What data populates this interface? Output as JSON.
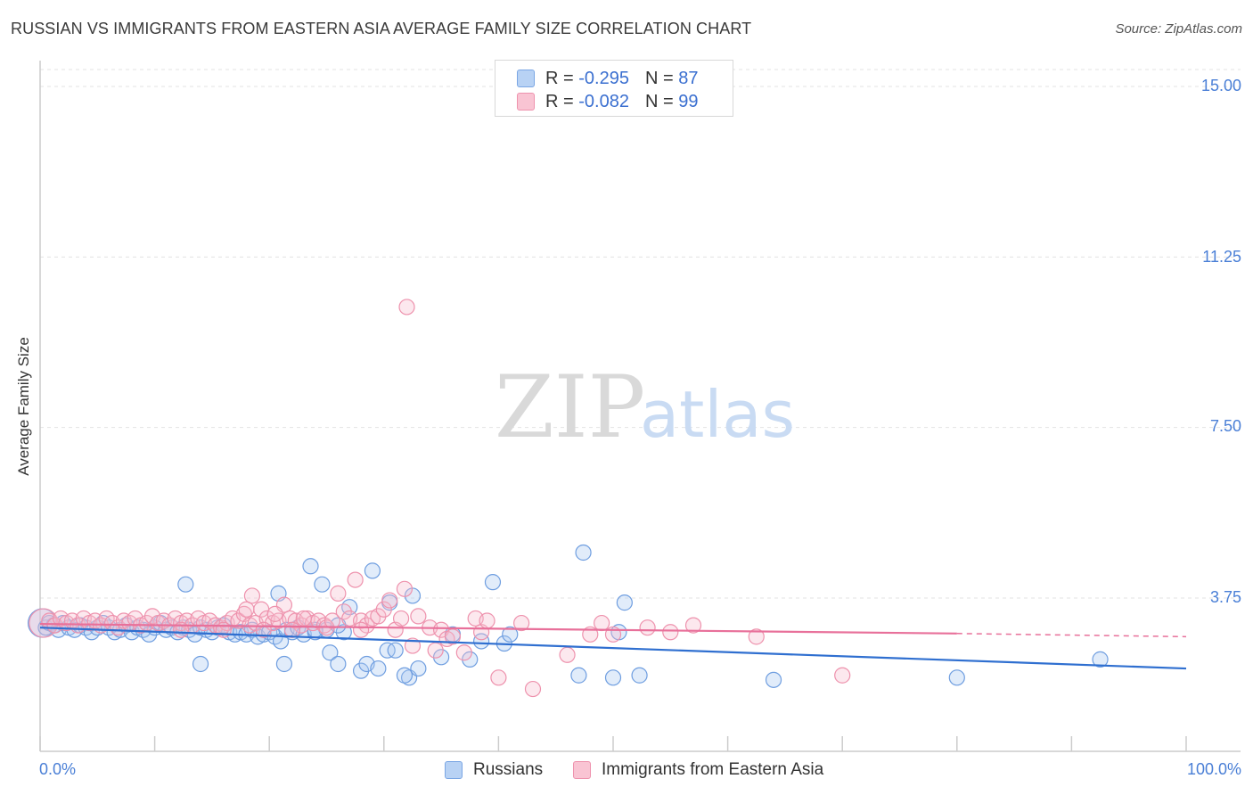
{
  "title": "RUSSIAN VS IMMIGRANTS FROM EASTERN ASIA AVERAGE FAMILY SIZE CORRELATION CHART",
  "source": "Source: ZipAtlas.com",
  "legend": {
    "rows": [
      {
        "r_label": "R =",
        "r_value": "-0.295",
        "n_label": "N =",
        "n_value": "87"
      },
      {
        "r_label": "R =",
        "r_value": "-0.082",
        "n_label": "N =",
        "n_value": "99"
      }
    ]
  },
  "bottom_legend": {
    "series1": "Russians",
    "series2": "Immigrants from Eastern Asia"
  },
  "colors": {
    "blue": "#6f9ee0",
    "blue_line": "#2f6fd0",
    "pink": "#ee92ad",
    "pink_line": "#e8709a",
    "axis_text": "#4a7fd6"
  },
  "chart_data": {
    "type": "scatter",
    "ylabel": "Average Family Size",
    "xlabel": "",
    "x_tick_labels": [
      "0.0%",
      "100.0%"
    ],
    "y_tick_labels": [
      "15.00",
      "11.25",
      "7.50",
      "3.75"
    ],
    "y_ticks": [
      15.0,
      11.25,
      7.5,
      3.75
    ],
    "xlim": [
      0,
      100
    ],
    "ylim": [
      0.5,
      15.5
    ],
    "grid": true,
    "watermark": {
      "part1": "ZIP",
      "part2": "atlas"
    },
    "series": [
      {
        "name": "Russians",
        "trend": {
          "x0": 0,
          "y0": 3.1,
          "x1": 100,
          "y1": 2.2
        },
        "points": [
          [
            0.2,
            3.2
          ],
          [
            0.5,
            3.1
          ],
          [
            0.8,
            3.2
          ],
          [
            1.2,
            3.15
          ],
          [
            1.6,
            3.05
          ],
          [
            2.0,
            3.2
          ],
          [
            2.5,
            3.1
          ],
          [
            3.0,
            3.05
          ],
          [
            3.5,
            3.15
          ],
          [
            4.0,
            3.1
          ],
          [
            4.5,
            3.0
          ],
          [
            5.0,
            3.1
          ],
          [
            5.5,
            3.2
          ],
          [
            6.0,
            3.1
          ],
          [
            6.5,
            3.0
          ],
          [
            7.0,
            3.05
          ],
          [
            7.5,
            3.15
          ],
          [
            8.0,
            3.0
          ],
          [
            8.5,
            3.1
          ],
          [
            9.0,
            3.05
          ],
          [
            9.5,
            2.95
          ],
          [
            10.0,
            3.1
          ],
          [
            10.5,
            3.2
          ],
          [
            11.0,
            3.05
          ],
          [
            11.5,
            3.1
          ],
          [
            12.0,
            3.0
          ],
          [
            12.5,
            3.1
          ],
          [
            13.0,
            3.05
          ],
          [
            13.5,
            2.95
          ],
          [
            14.0,
            3.1
          ],
          [
            14.5,
            3.05
          ],
          [
            15.0,
            3.0
          ],
          [
            15.5,
            3.1
          ],
          [
            16.0,
            3.15
          ],
          [
            16.5,
            3.0
          ],
          [
            17.0,
            2.95
          ],
          [
            17.5,
            3.0
          ],
          [
            18.0,
            2.95
          ],
          [
            18.5,
            3.05
          ],
          [
            19.0,
            2.9
          ],
          [
            19.5,
            2.95
          ],
          [
            20.0,
            3.0
          ],
          [
            20.5,
            2.9
          ],
          [
            21.0,
            2.8
          ],
          [
            21.5,
            3.05
          ],
          [
            22.0,
            3.0
          ],
          [
            22.5,
            3.1
          ],
          [
            23.0,
            2.95
          ],
          [
            24.0,
            3.0
          ],
          [
            25.0,
            3.05
          ],
          [
            12.7,
            4.05
          ],
          [
            14.0,
            2.3
          ],
          [
            20.8,
            3.85
          ],
          [
            21.3,
            2.3
          ],
          [
            25.3,
            2.55
          ],
          [
            23.6,
            4.45
          ],
          [
            24.0,
            3.05
          ],
          [
            26.0,
            2.3
          ],
          [
            24.6,
            4.05
          ],
          [
            26.5,
            3.0
          ],
          [
            26.0,
            3.15
          ],
          [
            27.0,
            3.55
          ],
          [
            28.0,
            2.15
          ],
          [
            29.0,
            4.35
          ],
          [
            28.5,
            2.3
          ],
          [
            29.5,
            2.2
          ],
          [
            30.3,
            2.6
          ],
          [
            30.5,
            3.65
          ],
          [
            31.0,
            2.6
          ],
          [
            32.2,
            2.0
          ],
          [
            31.8,
            2.05
          ],
          [
            32.5,
            3.8
          ],
          [
            33.0,
            2.2
          ],
          [
            35.0,
            2.45
          ],
          [
            36.0,
            2.95
          ],
          [
            37.5,
            2.4
          ],
          [
            38.5,
            2.8
          ],
          [
            39.5,
            4.1
          ],
          [
            40.5,
            2.75
          ],
          [
            41.0,
            2.95
          ],
          [
            47.0,
            2.05
          ],
          [
            47.4,
            4.75
          ],
          [
            50.0,
            2.0
          ],
          [
            50.5,
            3.0
          ],
          [
            51.0,
            3.65
          ],
          [
            52.3,
            2.05
          ],
          [
            64.0,
            1.95
          ],
          [
            80.0,
            2.0
          ],
          [
            92.5,
            2.4
          ]
        ]
      },
      {
        "name": "Immigrants from Eastern Asia",
        "trend": {
          "x0": 0,
          "y0": 3.18,
          "x1": 80,
          "y1": 2.97,
          "dash_x1": 100,
          "dash_y1": 2.9
        },
        "points": [
          [
            0.3,
            3.2
          ],
          [
            0.8,
            3.25
          ],
          [
            1.3,
            3.15
          ],
          [
            1.8,
            3.3
          ],
          [
            2.3,
            3.2
          ],
          [
            2.8,
            3.25
          ],
          [
            3.3,
            3.15
          ],
          [
            3.8,
            3.3
          ],
          [
            4.3,
            3.2
          ],
          [
            4.8,
            3.25
          ],
          [
            5.3,
            3.15
          ],
          [
            5.8,
            3.3
          ],
          [
            6.3,
            3.2
          ],
          [
            6.8,
            3.1
          ],
          [
            7.3,
            3.25
          ],
          [
            7.8,
            3.2
          ],
          [
            8.3,
            3.3
          ],
          [
            8.8,
            3.15
          ],
          [
            9.3,
            3.2
          ],
          [
            9.8,
            3.35
          ],
          [
            10.3,
            3.2
          ],
          [
            10.8,
            3.25
          ],
          [
            11.3,
            3.15
          ],
          [
            11.8,
            3.3
          ],
          [
            12.3,
            3.2
          ],
          [
            12.8,
            3.25
          ],
          [
            13.3,
            3.15
          ],
          [
            13.8,
            3.3
          ],
          [
            14.3,
            3.2
          ],
          [
            14.8,
            3.25
          ],
          [
            15.3,
            3.15
          ],
          [
            15.8,
            3.1
          ],
          [
            16.3,
            3.2
          ],
          [
            16.8,
            3.3
          ],
          [
            17.3,
            3.25
          ],
          [
            17.8,
            3.4
          ],
          [
            18.3,
            3.15
          ],
          [
            18.8,
            3.2
          ],
          [
            19.3,
            3.5
          ],
          [
            19.8,
            3.3
          ],
          [
            20.3,
            3.2
          ],
          [
            20.8,
            3.25
          ],
          [
            21.3,
            3.6
          ],
          [
            21.8,
            3.3
          ],
          [
            22.3,
            3.25
          ],
          [
            22.8,
            3.15
          ],
          [
            23.3,
            3.3
          ],
          [
            23.8,
            3.2
          ],
          [
            24.3,
            3.25
          ],
          [
            24.8,
            3.15
          ],
          [
            18.0,
            3.5
          ],
          [
            18.5,
            3.8
          ],
          [
            19.5,
            3.05
          ],
          [
            20.5,
            3.4
          ],
          [
            22.0,
            3.05
          ],
          [
            23.0,
            3.3
          ],
          [
            25.0,
            3.1
          ],
          [
            25.5,
            3.25
          ],
          [
            26.0,
            3.85
          ],
          [
            26.5,
            3.45
          ],
          [
            27.0,
            3.3
          ],
          [
            27.5,
            4.15
          ],
          [
            28.0,
            3.25
          ],
          [
            28.5,
            3.15
          ],
          [
            29.0,
            3.3
          ],
          [
            29.5,
            3.35
          ],
          [
            30.0,
            3.5
          ],
          [
            30.5,
            3.7
          ],
          [
            31.0,
            3.05
          ],
          [
            31.5,
            3.3
          ],
          [
            32.0,
            10.15
          ],
          [
            32.5,
            2.7
          ],
          [
            33.0,
            3.35
          ],
          [
            34.0,
            3.1
          ],
          [
            34.5,
            2.6
          ],
          [
            35.0,
            3.05
          ],
          [
            35.5,
            2.85
          ],
          [
            36.0,
            2.9
          ],
          [
            37.0,
            2.55
          ],
          [
            38.0,
            3.3
          ],
          [
            38.5,
            3.0
          ],
          [
            39.0,
            3.25
          ],
          [
            40.0,
            2.0
          ],
          [
            42.0,
            3.2
          ],
          [
            43.0,
            1.75
          ],
          [
            46.0,
            2.5
          ],
          [
            48.0,
            2.95
          ],
          [
            49.0,
            3.2
          ],
          [
            50.0,
            2.95
          ],
          [
            53.0,
            3.1
          ],
          [
            55.0,
            3.0
          ],
          [
            57.0,
            3.15
          ],
          [
            62.5,
            2.9
          ],
          [
            70.0,
            2.05
          ],
          [
            12.3,
            3.05
          ],
          [
            16.0,
            3.05
          ],
          [
            28.0,
            3.05
          ],
          [
            31.8,
            3.95
          ]
        ]
      }
    ]
  }
}
